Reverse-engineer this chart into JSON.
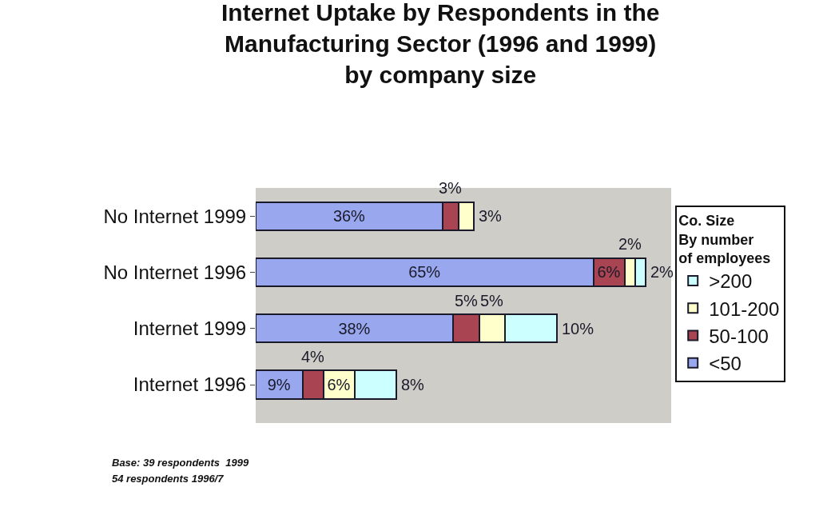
{
  "chart_data": {
    "type": "bar",
    "orientation": "horizontal",
    "stacked": true,
    "title": "Internet Uptake by Respondents in the Manufacturing Sector (1996 and 1999) by company size",
    "categories": [
      "No Internet 1999",
      "No Internet 1996",
      "Internet 1999",
      "Internet 1996"
    ],
    "series": [
      {
        "name": "<50",
        "color": "#99a8ee",
        "values": [
          36,
          65,
          38,
          9
        ],
        "value_labels": [
          "36%",
          "65%",
          "38%",
          "9%"
        ]
      },
      {
        "name": "50-100",
        "color": "#a94452",
        "values": [
          3,
          6,
          5,
          4
        ],
        "value_labels": [
          "3%",
          "6%",
          "5%",
          "4%"
        ]
      },
      {
        "name": "101-200",
        "color": "#ffffcc",
        "values": [
          3,
          2,
          5,
          6
        ],
        "value_labels": [
          "3%",
          "2%",
          "5%",
          "6%"
        ]
      },
      {
        "name": ">200",
        "color": "#ccffff",
        "values": [
          null,
          2,
          10,
          8
        ],
        "value_labels": [
          null,
          "2%",
          "10%",
          "8%"
        ]
      }
    ],
    "xlim": [
      0,
      80
    ],
    "tick_labels": "y",
    "grid": false,
    "legend": "right",
    "legend_title": "Co. Size By number of employees",
    "annotations": [
      "Base: 39 respondents  1999",
      "54 respondents 1996/7"
    ]
  }
}
